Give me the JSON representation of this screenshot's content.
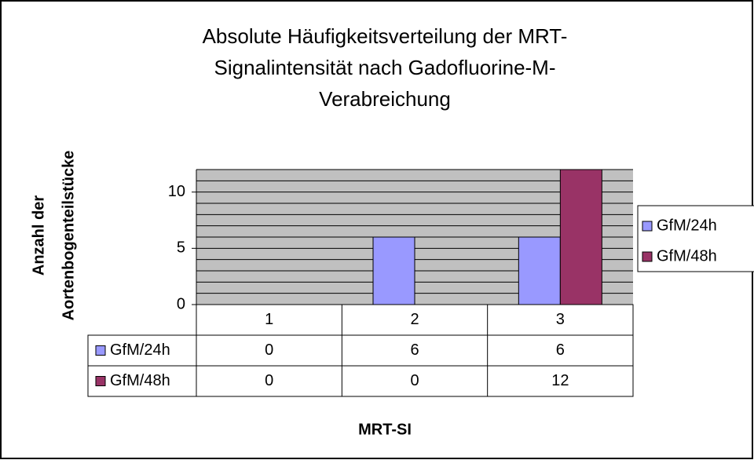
{
  "chart_data": {
    "type": "bar",
    "title_lines": [
      "Absolute Häufigkeitsverteilung der MRT-",
      "Signalintensität nach Gadofluorine-M-",
      "Verabreichung"
    ],
    "y_label_lines": [
      "Anzahl der",
      "Aortenbogenteilstücke"
    ],
    "x_label": "MRT-SI",
    "categories": [
      "1",
      "2",
      "3"
    ],
    "series": [
      {
        "name": "GfM/24h",
        "color": "#9999ff",
        "values": [
          0,
          6,
          6
        ]
      },
      {
        "name": "GfM/48h",
        "color": "#993366",
        "values": [
          0,
          0,
          12
        ]
      }
    ],
    "ylim": [
      0,
      12
    ],
    "yticks": [
      0,
      5,
      10
    ],
    "minor_yticks": [
      0,
      1,
      2,
      3,
      4,
      5,
      6,
      7,
      8,
      9,
      10,
      11,
      12
    ],
    "grid": true,
    "legend": "right",
    "data_table": true
  }
}
